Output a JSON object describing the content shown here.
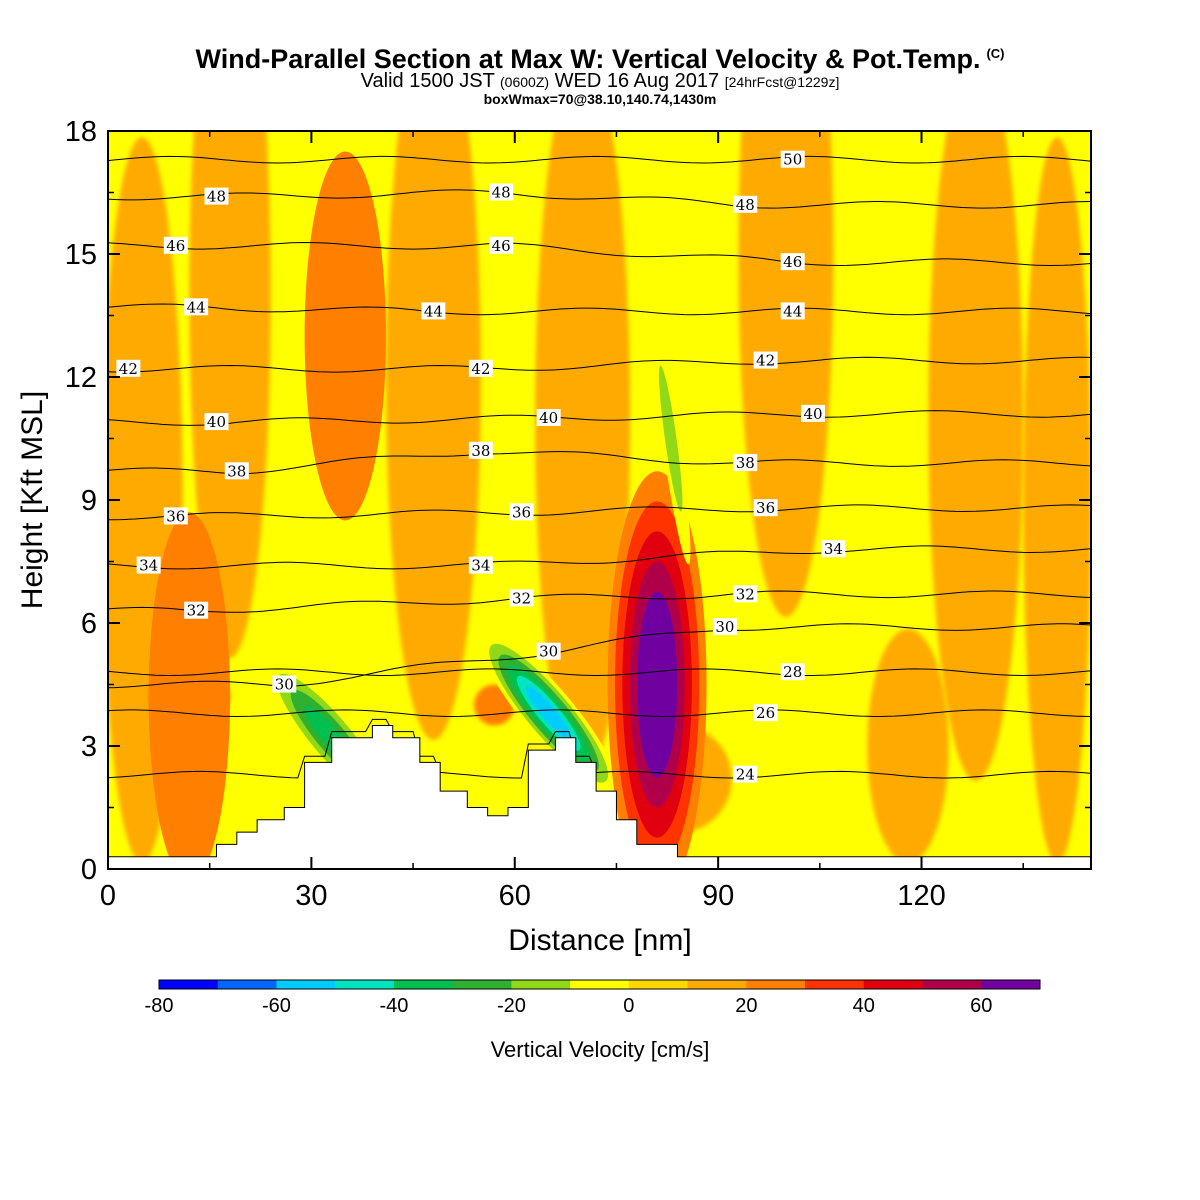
{
  "title": {
    "main": "Wind-Parallel Section at Max W: Vertical Velocity & Pot.Temp.",
    "copyright": "(C)",
    "valid_prefix": "Valid 1500 JST",
    "zulu": "(0600Z)",
    "valid_date": "WED 16 Aug 2017",
    "forecast": "[24hrFcst@1229z]",
    "box": "boxWmax=70@38.10,140.74,1430m"
  },
  "chart_data": {
    "type": "heatmap",
    "xlabel": "Distance [nm]",
    "ylabel": "Height [Kft MSL]",
    "xlim": [
      0,
      145
    ],
    "ylim": [
      0,
      18
    ],
    "x_ticks": [
      "0",
      "30",
      "60",
      "90",
      "120"
    ],
    "y_ticks": [
      "0",
      "3",
      "6",
      "9",
      "12",
      "15",
      "18"
    ],
    "grid": false,
    "background_value_cms": "0 to 20",
    "terrain_profile_kft": {
      "x": [
        0,
        16,
        19,
        22,
        26,
        29,
        33,
        39,
        42,
        46,
        49,
        53,
        56,
        59,
        62,
        66,
        69,
        72,
        75,
        78,
        84,
        145
      ],
      "y": [
        0.3,
        0.6,
        0.9,
        1.2,
        1.5,
        2.6,
        3.2,
        3.5,
        3.2,
        2.6,
        1.9,
        1.5,
        1.3,
        1.5,
        2.9,
        3.2,
        2.6,
        1.9,
        1.2,
        0.6,
        0.3,
        0.3
      ]
    },
    "vertical_velocity_features": [
      {
        "name": "downdraft",
        "x": 33,
        "y": 3.2,
        "value_cms": -40
      },
      {
        "name": "downdraft",
        "x": 65,
        "y": 3.8,
        "value_cms": -60
      },
      {
        "name": "updraft",
        "x": 81,
        "y": 4.5,
        "value_cms": 70
      },
      {
        "name": "weak downdraft",
        "x": 83,
        "y": 10.5,
        "value_cms": -20
      },
      {
        "name": "updraft",
        "x": 35,
        "y": 13,
        "value_cms": 20
      },
      {
        "name": "updraft",
        "x": 12,
        "y": 4.2,
        "value_cms": 20
      }
    ],
    "potential_temperature_labels": [
      {
        "text": "50",
        "x": 101,
        "y": 17.3
      },
      {
        "text": "48",
        "x": 16,
        "y": 16.4
      },
      {
        "text": "48",
        "x": 58,
        "y": 16.5
      },
      {
        "text": "48",
        "x": 94,
        "y": 16.2
      },
      {
        "text": "46",
        "x": 10,
        "y": 15.2
      },
      {
        "text": "46",
        "x": 58,
        "y": 15.2
      },
      {
        "text": "46",
        "x": 101,
        "y": 14.8
      },
      {
        "text": "44",
        "x": 13,
        "y": 13.7
      },
      {
        "text": "44",
        "x": 48,
        "y": 13.6
      },
      {
        "text": "44",
        "x": 101,
        "y": 13.6
      },
      {
        "text": "42",
        "x": 3,
        "y": 12.2
      },
      {
        "text": "42",
        "x": 55,
        "y": 12.2
      },
      {
        "text": "42",
        "x": 97,
        "y": 12.4
      },
      {
        "text": "40",
        "x": 16,
        "y": 10.9
      },
      {
        "text": "40",
        "x": 65,
        "y": 11.0
      },
      {
        "text": "40",
        "x": 104,
        "y": 11.1
      },
      {
        "text": "38",
        "x": 19,
        "y": 9.7
      },
      {
        "text": "38",
        "x": 55,
        "y": 10.2
      },
      {
        "text": "38",
        "x": 94,
        "y": 9.9
      },
      {
        "text": "36",
        "x": 10,
        "y": 8.6
      },
      {
        "text": "36",
        "x": 61,
        "y": 8.7
      },
      {
        "text": "36",
        "x": 97,
        "y": 8.8
      },
      {
        "text": "34",
        "x": 6,
        "y": 7.4
      },
      {
        "text": "34",
        "x": 55,
        "y": 7.4
      },
      {
        "text": "34",
        "x": 107,
        "y": 7.8
      },
      {
        "text": "32",
        "x": 13,
        "y": 6.3
      },
      {
        "text": "32",
        "x": 61,
        "y": 6.6
      },
      {
        "text": "32",
        "x": 94,
        "y": 6.7
      },
      {
        "text": "30",
        "x": 26,
        "y": 4.5
      },
      {
        "text": "30",
        "x": 65,
        "y": 5.3
      },
      {
        "text": "30",
        "x": 91,
        "y": 5.9
      },
      {
        "text": "28",
        "x": 101,
        "y": 4.8
      },
      {
        "text": "26",
        "x": 97,
        "y": 3.8
      },
      {
        "text": "24",
        "x": 94,
        "y": 2.3
      }
    ]
  },
  "colorbar": {
    "label": "Vertical Velocity [cm/s]",
    "ticks": [
      "-80",
      "-60",
      "-40",
      "-20",
      "0",
      "20",
      "40",
      "60"
    ],
    "colors": [
      "#0000ff",
      "#0066ff",
      "#00ccff",
      "#00e5c0",
      "#00c050",
      "#30b030",
      "#90d818",
      "#ffff00",
      "#ffd700",
      "#ffaa00",
      "#ff7f00",
      "#ff3300",
      "#e00010",
      "#b0004a",
      "#7000a0"
    ]
  }
}
